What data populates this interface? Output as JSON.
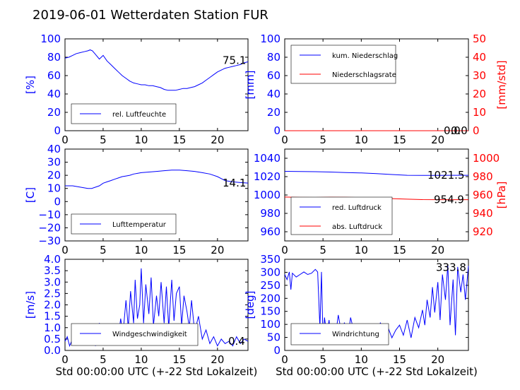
{
  "figure": {
    "title": "2019-06-01 Wetterdaten Station FUR"
  },
  "chart_data": [
    {
      "type": "line",
      "ylabel_left": "[%]",
      "xlim": [
        0,
        24
      ],
      "ylim": [
        0,
        100
      ],
      "xticks": [
        "0",
        "5",
        "10",
        "15",
        "20"
      ],
      "yticks": [
        "0",
        "20",
        "40",
        "60",
        "80",
        "100"
      ],
      "series": [
        {
          "name": "rel. Luftfeuchte",
          "color": "#0000ff",
          "axis": "left",
          "x": [
            0,
            0.5,
            1,
            1.5,
            2,
            2.5,
            3,
            3.3,
            3.6,
            4,
            4.5,
            5,
            5.5,
            6,
            6.5,
            7,
            7.5,
            8,
            8.5,
            9,
            9.5,
            10,
            10.5,
            11,
            11.5,
            12,
            12.5,
            13,
            13.5,
            14,
            14.5,
            15,
            15.5,
            16,
            16.5,
            17,
            17.5,
            18,
            18.5,
            19,
            19.5,
            20,
            20.5,
            21,
            21.5,
            22,
            22.5,
            23,
            23.5,
            24
          ],
          "y": [
            79,
            80,
            82,
            84,
            85,
            86,
            87,
            88,
            87,
            83,
            78,
            82,
            76,
            72,
            68,
            64,
            60,
            57,
            54,
            52,
            51,
            50,
            50,
            49,
            49,
            48,
            47,
            45,
            44,
            44,
            44,
            45,
            46,
            46,
            47,
            48,
            50,
            52,
            55,
            58,
            61,
            64,
            66,
            68,
            69,
            70,
            71,
            72,
            74,
            75
          ]
        }
      ],
      "last_value_label": "75.1",
      "legend_loc": "lower-left"
    },
    {
      "type": "line",
      "ylabel_left": "[mm]",
      "ylabel_right": "[mm/std]",
      "xlim": [
        0,
        24
      ],
      "ylim": [
        0,
        100
      ],
      "ylim_right": [
        0,
        50
      ],
      "xticks": [
        "0",
        "5",
        "10",
        "15",
        "20"
      ],
      "yticks": [
        "0",
        "20",
        "40",
        "60",
        "80",
        "100"
      ],
      "yticks_right": [
        "0",
        "10",
        "20",
        "30",
        "40",
        "50"
      ],
      "series": [
        {
          "name": "kum. Niederschlag",
          "color": "#0000ff",
          "axis": "left",
          "x": [
            0,
            24
          ],
          "y": [
            0,
            0
          ]
        },
        {
          "name": "Niederschlagsrate",
          "color": "#ff0000",
          "axis": "right",
          "x": [
            0,
            24
          ],
          "y": [
            0,
            0
          ]
        }
      ],
      "last_value_label": "0.0",
      "last_value_label_2": "0.0",
      "legend_loc": "upper-left"
    },
    {
      "type": "line",
      "ylabel_left": "[C]",
      "xlim": [
        0,
        24
      ],
      "ylim": [
        -30,
        40
      ],
      "xticks": [
        "0",
        "5",
        "10",
        "15",
        "20"
      ],
      "yticks": [
        "−30",
        "−20",
        "−10",
        "0",
        "10",
        "20",
        "30",
        "40"
      ],
      "series": [
        {
          "name": "Lufttemperatur",
          "color": "#0000ff",
          "axis": "left",
          "x": [
            0,
            1,
            2,
            3,
            3.5,
            4,
            4.5,
            5,
            5.5,
            6,
            6.5,
            7,
            7.5,
            8,
            8.5,
            9,
            9.5,
            10,
            11,
            12,
            13,
            14,
            15,
            16,
            17,
            18,
            19,
            20,
            21,
            22,
            23,
            24
          ],
          "y": [
            12,
            12,
            11,
            10,
            10,
            11,
            12,
            14,
            15,
            16,
            17,
            18,
            19,
            19.5,
            20,
            21,
            21.5,
            22,
            22.5,
            23,
            23.5,
            24,
            24,
            23.5,
            23,
            22,
            21,
            19,
            16,
            15,
            14.5,
            14.1
          ]
        }
      ],
      "last_value_label": "14.1",
      "legend_loc": "lower-left"
    },
    {
      "type": "line",
      "ylabel_right": "[hPa]",
      "xlim": [
        0,
        24
      ],
      "ylim": [
        950,
        1050
      ],
      "ylim_right": [
        910,
        1010
      ],
      "xticks": [
        "0",
        "5",
        "10",
        "15",
        "20"
      ],
      "yticks": [
        "960",
        "980",
        "1000",
        "1020",
        "1040"
      ],
      "yticks_right": [
        "920",
        "940",
        "960",
        "980",
        "1000"
      ],
      "series": [
        {
          "name": "red. Luftdruck",
          "color": "#0000ff",
          "axis": "left",
          "x": [
            0,
            2,
            4,
            6,
            8,
            10,
            12,
            14,
            16,
            18,
            20,
            22,
            24
          ],
          "y": [
            1025.8,
            1025.6,
            1025.4,
            1025.0,
            1024.5,
            1024.0,
            1023.2,
            1022.3,
            1021.5,
            1021.3,
            1021.4,
            1021.5,
            1021.5
          ]
        },
        {
          "name": "abs. Luftdruck",
          "color": "#ff0000",
          "axis": "right",
          "x": [
            0,
            2,
            4,
            6,
            8,
            10,
            12,
            14,
            16,
            18,
            20,
            22,
            24
          ],
          "y": [
            957.8,
            957.4,
            957.3,
            957.6,
            957.5,
            957.2,
            956.6,
            956.1,
            955.5,
            955.0,
            954.9,
            954.9,
            954.9
          ]
        }
      ],
      "last_value_label": "1021.5",
      "last_value_label_2": "954.9",
      "legend_loc": "lower-left"
    },
    {
      "type": "line",
      "ylabel_left": "[m/s]",
      "xlim": [
        0,
        24
      ],
      "ylim": [
        0,
        4
      ],
      "xticks": [
        "0",
        "5",
        "10",
        "15",
        "20"
      ],
      "yticks": [
        "0.0",
        "0.5",
        "1.0",
        "1.5",
        "2.0",
        "2.5",
        "3.0",
        "3.5",
        "4.0"
      ],
      "xlabel": "Std 00:00:00 UTC (+-22 Std Lokalzeit)",
      "series": [
        {
          "name": "Windgeschwindigkeit",
          "color": "#0000ff",
          "axis": "left",
          "x": [
            0,
            0.3,
            0.6,
            1,
            1.5,
            2,
            2.5,
            3,
            3.5,
            4,
            4.5,
            5,
            5.5,
            6,
            6.5,
            7,
            7.3,
            7.6,
            8,
            8.3,
            8.6,
            9,
            9.2,
            9.5,
            9.8,
            10,
            10.3,
            10.6,
            11,
            11.3,
            11.6,
            12,
            12.3,
            12.6,
            13,
            13.3,
            13.6,
            14,
            14.3,
            14.6,
            15,
            15.3,
            15.6,
            16,
            16.3,
            16.6,
            17,
            17.5,
            18,
            18.5,
            19,
            19.5,
            20,
            20.5,
            21,
            21.5,
            22,
            22.5,
            23,
            23.5,
            24
          ],
          "y": [
            0.4,
            0.6,
            0.2,
            0.5,
            0.8,
            0.3,
            1.0,
            0.6,
            0.9,
            0.2,
            1.2,
            0.5,
            0.8,
            0.4,
            1.1,
            0.6,
            1.4,
            0.7,
            2.2,
            1.0,
            2.6,
            1.2,
            3.1,
            1.4,
            2.0,
            3.6,
            1.2,
            2.9,
            1.6,
            3.2,
            1.1,
            2.4,
            1.5,
            3.0,
            1.2,
            2.8,
            1.0,
            3.1,
            1.3,
            2.5,
            2.8,
            1.1,
            2.4,
            1.7,
            1.0,
            2.2,
            0.8,
            1.5,
            0.5,
            0.9,
            0.3,
            0.6,
            0.2,
            0.5,
            0.3,
            0.4,
            0.2,
            0.6,
            0.3,
            0.5,
            0.4
          ]
        }
      ],
      "last_value_label": "0.4",
      "legend_loc": "lower-left"
    },
    {
      "type": "line",
      "ylabel_left": "[deg]",
      "xlim": [
        0,
        24
      ],
      "ylim": [
        0,
        360
      ],
      "xticks": [
        "0",
        "5",
        "10",
        "15",
        "20"
      ],
      "yticks": [
        "0",
        "50",
        "100",
        "150",
        "200",
        "250",
        "300",
        "350"
      ],
      "xlabel": "Std 00:00:00 UTC (+-22 Std Lokalzeit)",
      "series": [
        {
          "name": "Windrichtung",
          "color": "#0000ff",
          "axis": "left",
          "x": [
            0,
            0.3,
            0.6,
            0.8,
            1,
            1.5,
            2,
            2.5,
            3,
            3.5,
            4,
            4.3,
            4.6,
            4.8,
            5,
            5.2,
            5.5,
            5.8,
            6,
            6.3,
            6.6,
            7,
            7.4,
            7.8,
            8.2,
            8.6,
            9,
            9.5,
            10,
            10.5,
            11,
            11.5,
            12,
            12.5,
            13,
            13.5,
            14,
            14.5,
            15,
            15.5,
            16,
            16.5,
            17,
            17.5,
            18,
            18.3,
            18.6,
            19,
            19.3,
            19.6,
            20,
            20.3,
            20.6,
            21,
            21.3,
            21.6,
            22,
            22.3,
            22.6,
            23,
            23.3,
            23.6,
            24
          ],
          "y": [
            300,
            280,
            310,
            240,
            305,
            290,
            300,
            310,
            300,
            305,
            320,
            310,
            90,
            310,
            40,
            130,
            60,
            120,
            30,
            100,
            50,
            140,
            70,
            110,
            40,
            130,
            80,
            60,
            90,
            50,
            100,
            70,
            40,
            110,
            60,
            90,
            50,
            80,
            100,
            60,
            120,
            50,
            130,
            90,
            160,
            100,
            200,
            130,
            250,
            150,
            270,
            120,
            300,
            200,
            340,
            100,
            280,
            60,
            330,
            230,
            300,
            200,
            333.8
          ]
        }
      ],
      "last_value_label": "333.8",
      "legend_loc": "lower-left"
    }
  ]
}
